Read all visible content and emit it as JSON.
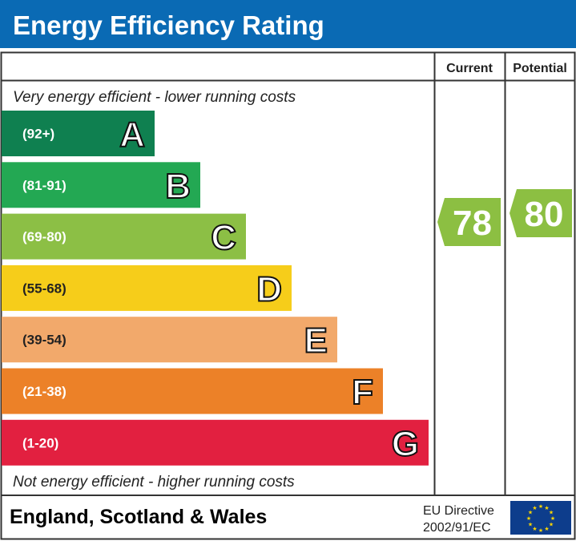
{
  "header": {
    "title": "Energy Efficiency Rating",
    "color": "#0a6ab4"
  },
  "columns": {
    "current": "Current",
    "potential": "Potential"
  },
  "top_note": "Very energy efficient - lower running costs",
  "bottom_note": "Not energy efficient - higher running costs",
  "footer": {
    "region": "England, Scotland & Wales",
    "directive_line1": "EU Directive",
    "directive_line2": "2002/91/EC",
    "flag": "eu-flag-icon"
  },
  "chart_data": {
    "type": "bar",
    "title": "Energy Efficiency Rating",
    "bands": [
      {
        "letter": "A",
        "range": "(92+)",
        "color": "#0f8050"
      },
      {
        "letter": "B",
        "range": "(81-91)",
        "color": "#23a853"
      },
      {
        "letter": "C",
        "range": "(69-80)",
        "color": "#8cbf45"
      },
      {
        "letter": "D",
        "range": "(55-68)",
        "color": "#f6cd1a"
      },
      {
        "letter": "E",
        "range": "(39-54)",
        "color": "#f2a96b"
      },
      {
        "letter": "F",
        "range": "(21-38)",
        "color": "#ec8128"
      },
      {
        "letter": "G",
        "range": "(1-20)",
        "color": "#e22040"
      }
    ],
    "current": {
      "value": 78,
      "band": "C",
      "color": "#8cbf42"
    },
    "potential": {
      "value": 80,
      "band": "C",
      "color": "#8cbf42"
    }
  }
}
